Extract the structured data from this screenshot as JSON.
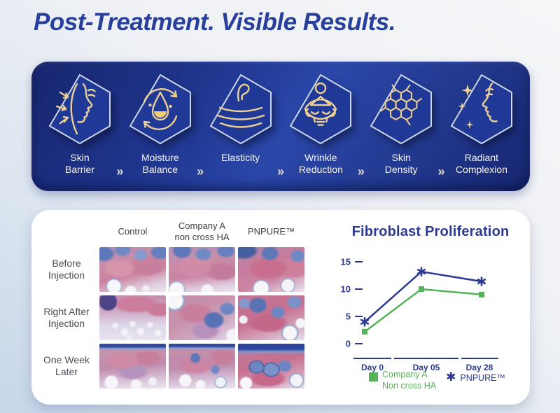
{
  "page": {
    "title": "Post-Treatment. Visible Results.",
    "background_top": "#f4f5f7",
    "background_bottom": "#c7d6e9",
    "title_color": "#28409c"
  },
  "banner": {
    "separator": "»",
    "colors": {
      "background": "#1e338a",
      "icon_gold": "#eccf92",
      "label": "#f8f4ea"
    },
    "items": [
      {
        "label": "Skin\nBarrier",
        "icon": "skin-barrier-icon"
      },
      {
        "label": "Moisture\nBalance",
        "icon": "moisture-balance-icon"
      },
      {
        "label": "Elasticity",
        "icon": "elasticity-icon"
      },
      {
        "label": "Wrinkle\nReduction",
        "icon": "wrinkle-reduction-icon"
      },
      {
        "label": "Skin\nDensity",
        "icon": "skin-density-icon"
      },
      {
        "label": "Radiant\nComplexion",
        "icon": "radiant-complexion-icon"
      }
    ]
  },
  "comparison": {
    "column_headers": [
      "Control",
      "Company A\nnon cross HA",
      "PNPURE™"
    ],
    "row_labels": [
      "Before\nInjection",
      "Right After\nInjection",
      "One Week\nLater"
    ]
  },
  "chart_data": {
    "type": "line",
    "title": "Fibroblast Proliferation",
    "categories": [
      "Day 0",
      "Day 05",
      "Day 28"
    ],
    "yticks": [
      0,
      5,
      10,
      15
    ],
    "ylim": [
      0,
      16
    ],
    "grid": false,
    "legend_position": "bottom",
    "axis_color": "#2b3990",
    "series": [
      {
        "name": "Company A Non cross HA",
        "color": "#56b257",
        "marker": "square",
        "values": [
          2.2,
          10,
          9
        ]
      },
      {
        "name": "PNPURE™",
        "color": "#2b3990",
        "marker": "asterisk",
        "values": [
          4,
          13.2,
          11.4
        ]
      }
    ]
  },
  "legend": {
    "company": "Company A\nNon cross HA",
    "pnpure": "PNPURE™",
    "asterisk": "✱"
  }
}
